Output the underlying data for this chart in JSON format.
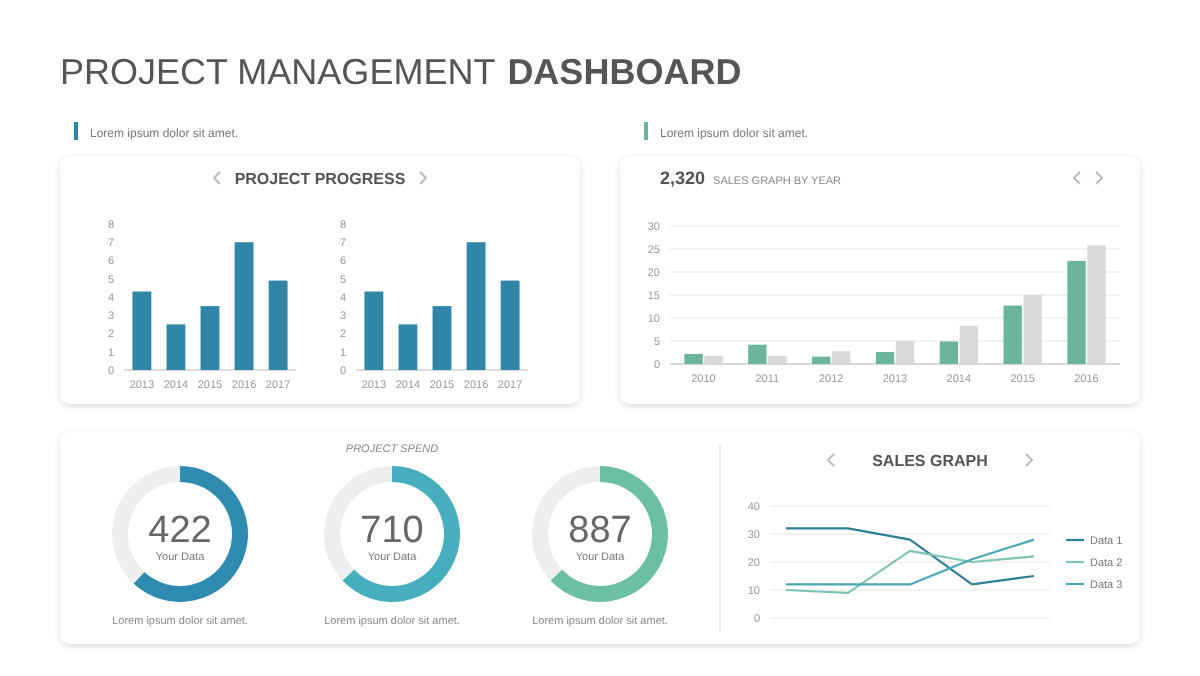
{
  "chart_data": [
    {
      "type": "other",
      "annotations": [
        "PROJECT MANAGEMENT",
        "DASHBOARD"
      ]
    },
    {
      "type": "bar",
      "title": "PROJECT PROGRESS",
      "annotations": [
        "Lorem ipsum dolor sit amet."
      ],
      "categories": [
        "2013",
        "2014",
        "2015",
        "2016",
        "2017"
      ],
      "values": [
        4.3,
        2.5,
        3.5,
        7,
        4.9
      ],
      "color": "#2f86a6",
      "ylim": [
        0,
        8
      ],
      "yticks": [
        0,
        1,
        2,
        3,
        4,
        5,
        6,
        7,
        8
      ]
    },
    {
      "type": "bar",
      "categories": [
        "2013",
        "2014",
        "2015",
        "2016",
        "2017"
      ],
      "values": [
        4.3,
        2.5,
        3.5,
        7,
        4.9
      ],
      "color": "#2f86a6",
      "ylim": [
        0,
        8
      ],
      "yticks": [
        0,
        1,
        2,
        3,
        4,
        5,
        6,
        7,
        8
      ]
    },
    {
      "type": "bar",
      "title": "SALES GRAPH BY YEAR",
      "annotations": [
        "Lorem ipsum dolor sit amet.",
        "2,320"
      ],
      "categories": [
        "2010",
        "2011",
        "2012",
        "2013",
        "2014",
        "2015",
        "2016"
      ],
      "series": [
        {
          "color": "#6bb59d",
          "values": [
            2.2,
            4.2,
            1.6,
            2.6,
            4.9,
            12.7,
            22.4
          ]
        },
        {
          "color": "#d9d9d9",
          "values": [
            1.8,
            1.8,
            2.8,
            5,
            8.3,
            15,
            25.8
          ]
        }
      ],
      "ylim": [
        0,
        30
      ],
      "yticks": [
        0,
        5,
        10,
        15,
        20,
        25,
        30
      ],
      "grid": "y"
    },
    {
      "type": "donut",
      "categories": [
        null,
        null
      ],
      "values": [
        62,
        38
      ],
      "colors": [
        "#2f8bb0",
        "#eeeeee"
      ],
      "annotations": [
        "422",
        "Your Data",
        "Lorem ipsum dolor sit amet."
      ]
    },
    {
      "type": "donut",
      "title": "PROJECT SPEND",
      "categories": [
        null,
        null
      ],
      "values": [
        63,
        37
      ],
      "colors": [
        "#46aebd",
        "#eeeeee"
      ],
      "annotations": [
        "710",
        "Your Data",
        "Lorem ipsum dolor sit amet."
      ]
    },
    {
      "type": "donut",
      "categories": [
        null,
        null
      ],
      "values": [
        63,
        37
      ],
      "colors": [
        "#6bbfa3",
        "#eeeeee"
      ],
      "annotations": [
        "887",
        "Your Data",
        "Lorem ipsum dolor sit amet."
      ]
    },
    {
      "type": "line",
      "title": "SALES GRAPH",
      "categories": [
        null,
        null,
        null,
        null,
        null
      ],
      "series": [
        {
          "name": "Data 1",
          "color": "#2e7f96",
          "values": [
            32,
            32,
            28,
            12,
            15
          ]
        },
        {
          "name": "Data 2",
          "color": "#7fc4b4",
          "values": [
            10,
            9,
            24,
            20,
            22
          ]
        },
        {
          "name": "Data 3",
          "color": "#4aa9b3",
          "values": [
            12,
            12,
            12,
            21,
            28
          ]
        }
      ],
      "ylim": [
        0,
        40
      ],
      "yticks": [
        0,
        10,
        20,
        30,
        40
      ],
      "grid": "y",
      "legend": "right"
    }
  ]
}
